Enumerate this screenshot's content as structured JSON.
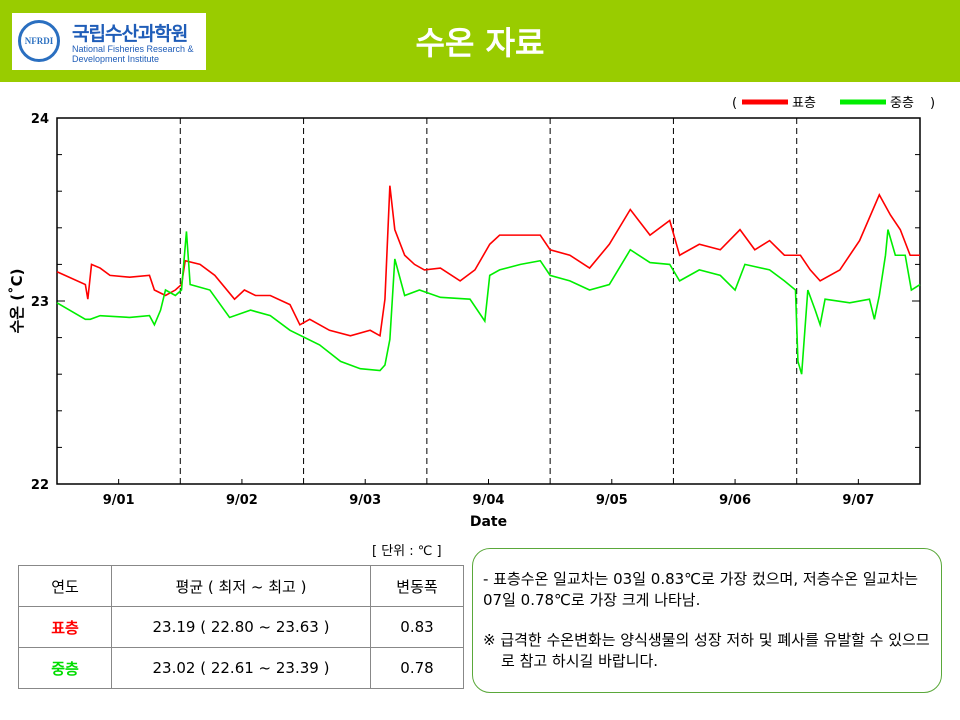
{
  "header": {
    "title": "수온 자료",
    "logo_ko": "국립수산과학원",
    "logo_en1": "National Fisheries Research &",
    "logo_en2": "Development Institute",
    "logo_seal": "NFRDI"
  },
  "colors": {
    "header_bg": "#99cc00",
    "surface": "#ff0000",
    "middle": "#00ee00"
  },
  "chart_data": {
    "type": "line",
    "xlabel": "Date",
    "ylabel": "수온 (˚C)",
    "ylim": [
      22,
      24
    ],
    "yticks": [
      "22",
      "23",
      "24"
    ],
    "categories": [
      "9/01",
      "9/02",
      "9/03",
      "9/04",
      "9/05",
      "9/06",
      "9/07"
    ],
    "legend": {
      "open": "(",
      "close": ")",
      "position": "top-right"
    },
    "series": [
      {
        "name": "표층",
        "color": "#ff0000",
        "points": [
          [
            0,
            23.16
          ],
          [
            0.23,
            23.09
          ],
          [
            0.25,
            23.01
          ],
          [
            0.28,
            23.2
          ],
          [
            0.35,
            23.18
          ],
          [
            0.43,
            23.14
          ],
          [
            0.59,
            23.13
          ],
          [
            0.75,
            23.14
          ],
          [
            0.79,
            23.06
          ],
          [
            0.88,
            23.03
          ],
          [
            0.96,
            23.06
          ],
          [
            1.01,
            23.09
          ],
          [
            1.04,
            23.22
          ],
          [
            1.16,
            23.2
          ],
          [
            1.28,
            23.14
          ],
          [
            1.44,
            23.01
          ],
          [
            1.52,
            23.06
          ],
          [
            1.61,
            23.03
          ],
          [
            1.73,
            23.03
          ],
          [
            1.89,
            22.98
          ],
          [
            1.97,
            22.87
          ],
          [
            2.05,
            22.9
          ],
          [
            2.21,
            22.84
          ],
          [
            2.38,
            22.81
          ],
          [
            2.54,
            22.84
          ],
          [
            2.62,
            22.81
          ],
          [
            2.66,
            23.01
          ],
          [
            2.7,
            23.63
          ],
          [
            2.74,
            23.39
          ],
          [
            2.82,
            23.25
          ],
          [
            2.9,
            23.2
          ],
          [
            2.98,
            23.17
          ],
          [
            3.11,
            23.18
          ],
          [
            3.27,
            23.11
          ],
          [
            3.39,
            23.17
          ],
          [
            3.51,
            23.31
          ],
          [
            3.59,
            23.36
          ],
          [
            3.76,
            23.36
          ],
          [
            3.92,
            23.36
          ],
          [
            4.0,
            23.28
          ],
          [
            4.16,
            23.25
          ],
          [
            4.32,
            23.18
          ],
          [
            4.48,
            23.31
          ],
          [
            4.65,
            23.5
          ],
          [
            4.81,
            23.36
          ],
          [
            4.97,
            23.44
          ],
          [
            5.05,
            23.25
          ],
          [
            5.21,
            23.31
          ],
          [
            5.38,
            23.28
          ],
          [
            5.54,
            23.39
          ],
          [
            5.66,
            23.28
          ],
          [
            5.78,
            23.33
          ],
          [
            5.9,
            23.25
          ],
          [
            6.03,
            23.25
          ],
          [
            6.11,
            23.17
          ],
          [
            6.19,
            23.11
          ],
          [
            6.35,
            23.17
          ],
          [
            6.51,
            23.33
          ],
          [
            6.67,
            23.58
          ],
          [
            6.76,
            23.47
          ],
          [
            6.84,
            23.39
          ],
          [
            6.92,
            23.25
          ],
          [
            7.0,
            23.25
          ]
        ]
      },
      {
        "name": "중층",
        "color": "#00ee00",
        "points": [
          [
            0,
            22.99
          ],
          [
            0.23,
            22.9
          ],
          [
            0.27,
            22.9
          ],
          [
            0.35,
            22.92
          ],
          [
            0.59,
            22.91
          ],
          [
            0.75,
            22.92
          ],
          [
            0.79,
            22.87
          ],
          [
            0.84,
            22.95
          ],
          [
            0.88,
            23.06
          ],
          [
            0.96,
            23.03
          ],
          [
            1.01,
            23.06
          ],
          [
            1.05,
            23.38
          ],
          [
            1.08,
            23.09
          ],
          [
            1.24,
            23.06
          ],
          [
            1.4,
            22.91
          ],
          [
            1.57,
            22.95
          ],
          [
            1.73,
            22.92
          ],
          [
            1.89,
            22.84
          ],
          [
            2.13,
            22.76
          ],
          [
            2.3,
            22.67
          ],
          [
            2.46,
            22.63
          ],
          [
            2.62,
            22.62
          ],
          [
            2.66,
            22.65
          ],
          [
            2.7,
            22.79
          ],
          [
            2.74,
            23.23
          ],
          [
            2.82,
            23.03
          ],
          [
            2.94,
            23.06
          ],
          [
            3.11,
            23.02
          ],
          [
            3.35,
            23.01
          ],
          [
            3.47,
            22.89
          ],
          [
            3.51,
            23.14
          ],
          [
            3.59,
            23.17
          ],
          [
            3.76,
            23.2
          ],
          [
            3.92,
            23.22
          ],
          [
            4.0,
            23.14
          ],
          [
            4.16,
            23.11
          ],
          [
            4.32,
            23.06
          ],
          [
            4.48,
            23.09
          ],
          [
            4.65,
            23.28
          ],
          [
            4.81,
            23.21
          ],
          [
            4.97,
            23.2
          ],
          [
            5.05,
            23.11
          ],
          [
            5.21,
            23.17
          ],
          [
            5.38,
            23.14
          ],
          [
            5.5,
            23.06
          ],
          [
            5.58,
            23.2
          ],
          [
            5.78,
            23.17
          ],
          [
            5.9,
            23.11
          ],
          [
            5.99,
            23.06
          ],
          [
            6.01,
            22.67
          ],
          [
            6.04,
            22.6
          ],
          [
            6.09,
            23.06
          ],
          [
            6.15,
            22.95
          ],
          [
            6.19,
            22.87
          ],
          [
            6.23,
            23.01
          ],
          [
            6.43,
            22.99
          ],
          [
            6.59,
            23.01
          ],
          [
            6.63,
            22.9
          ],
          [
            6.67,
            23.03
          ],
          [
            6.72,
            23.25
          ],
          [
            6.74,
            23.39
          ],
          [
            6.8,
            23.25
          ],
          [
            6.88,
            23.25
          ],
          [
            6.93,
            23.06
          ],
          [
            7.0,
            23.09
          ]
        ]
      }
    ]
  },
  "table": {
    "unit": "[ 단위 : ℃ ]",
    "headers": [
      "연도",
      "평균 ( 최저 ~ 최고 )",
      "변동폭"
    ],
    "rows": [
      {
        "label": "표층",
        "value": "23.19 ( 22.80 ~ 23.63 )",
        "range": "0.83"
      },
      {
        "label": "중층",
        "value": "23.02 ( 22.61 ~ 23.39 )",
        "range": "0.78"
      }
    ]
  },
  "note": {
    "line1": "- 표층수온 일교차는 03일 0.83℃로 가장 컸으며, 저층수온 일교차는 07일 0.78℃로 가장 크게 나타남.",
    "line2": "※ 급격한 수온변화는 양식생물의 성장 저하 및 폐사를 유발할 수 있으므로 참고 하시길 바랍니다."
  }
}
